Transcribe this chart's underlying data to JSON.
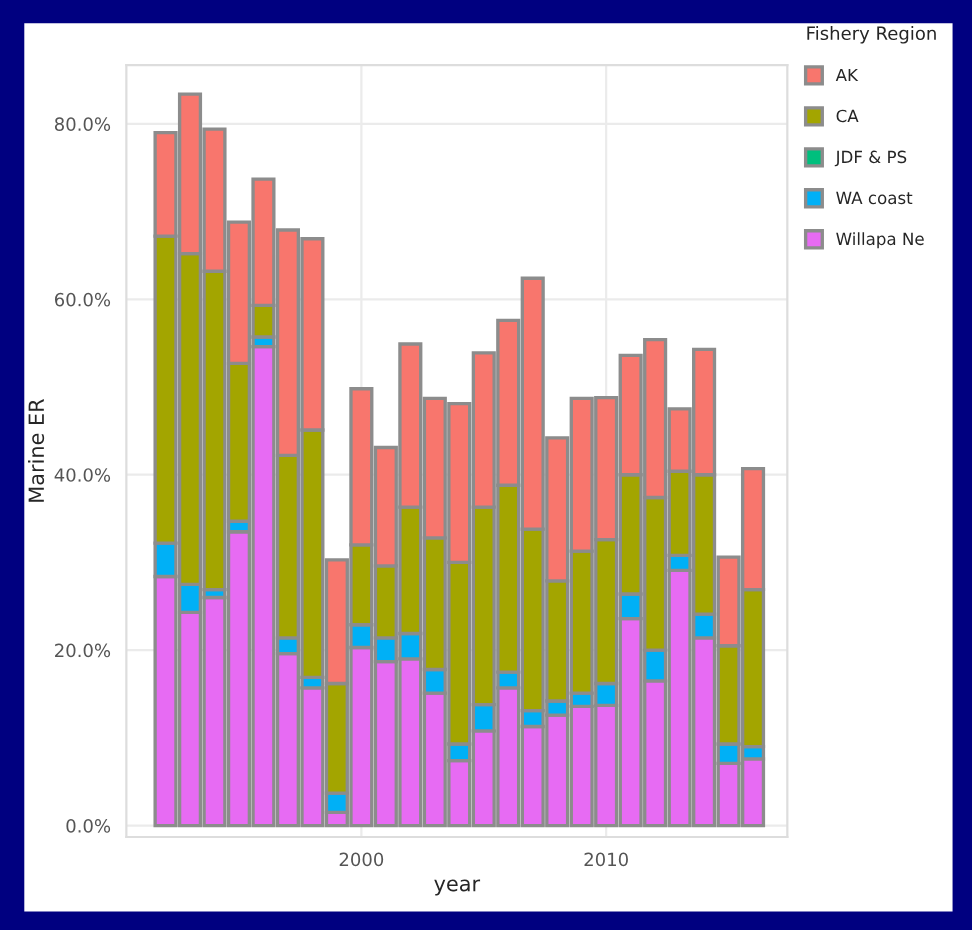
{
  "chart_data": {
    "type": "bar",
    "stacked": true,
    "xlabel": "year",
    "ylabel": "Marine ER",
    "legend_title": "Fishery Region",
    "x": [
      1992,
      1993,
      1994,
      1995,
      1996,
      1997,
      1998,
      1999,
      2000,
      2001,
      2002,
      2003,
      2004,
      2005,
      2006,
      2007,
      2008,
      2009,
      2010,
      2011,
      2012,
      2013,
      2014,
      2015,
      2016
    ],
    "series": [
      {
        "name": "Willapa Ne",
        "color": "#e76bf3",
        "values": [
          28.4,
          24.3,
          26.0,
          33.5,
          54.6,
          19.6,
          15.7,
          1.5,
          20.3,
          18.7,
          19.0,
          15.1,
          7.4,
          10.8,
          15.7,
          11.3,
          12.6,
          13.6,
          13.7,
          23.6,
          16.5,
          29.1,
          21.4,
          7.1,
          7.6
        ]
      },
      {
        "name": "WA coast",
        "color": "#00b0f6",
        "values": [
          3.8,
          3.2,
          0.9,
          1.2,
          1.1,
          1.8,
          1.2,
          2.2,
          2.6,
          2.7,
          2.9,
          2.7,
          1.9,
          3.0,
          1.8,
          1.8,
          1.6,
          1.5,
          2.5,
          2.8,
          3.5,
          1.7,
          2.7,
          2.2,
          1.4
        ]
      },
      {
        "name": "JDF & PS",
        "color": "#00bf7d",
        "values": [
          null,
          null,
          null,
          null,
          null,
          null,
          null,
          null,
          null,
          null,
          null,
          null,
          null,
          null,
          null,
          null,
          null,
          null,
          null,
          null,
          null,
          null,
          null,
          null,
          null
        ]
      },
      {
        "name": "CA",
        "color": "#a3a500",
        "values": [
          35.0,
          37.7,
          36.3,
          18.0,
          3.6,
          20.8,
          28.2,
          12.5,
          9.1,
          8.2,
          14.4,
          15.0,
          20.7,
          22.5,
          21.3,
          20.7,
          13.7,
          16.2,
          16.4,
          13.6,
          17.4,
          9.6,
          15.9,
          11.2,
          17.9
        ]
      },
      {
        "name": "AK",
        "color": "#f8766d",
        "values": [
          11.8,
          18.2,
          16.2,
          16.1,
          14.4,
          25.7,
          21.8,
          14.1,
          17.8,
          13.5,
          18.6,
          15.9,
          18.1,
          17.6,
          18.8,
          28.6,
          16.3,
          17.4,
          16.2,
          13.6,
          18.0,
          7.1,
          14.3,
          10.1,
          13.8
        ]
      }
    ],
    "xlim": [
      1990.4,
      2017.4
    ],
    "xticks": [
      2000,
      2010
    ],
    "ylim": [
      -1.3,
      86.7
    ],
    "yticks": [
      {
        "value": 0,
        "label": "0.0%"
      },
      {
        "value": 20,
        "label": "20.0%"
      },
      {
        "value": 40,
        "label": "40.0%"
      },
      {
        "value": 60,
        "label": "60.0%"
      },
      {
        "value": 80,
        "label": "80.0%"
      }
    ],
    "grid": true,
    "legend": "right"
  }
}
